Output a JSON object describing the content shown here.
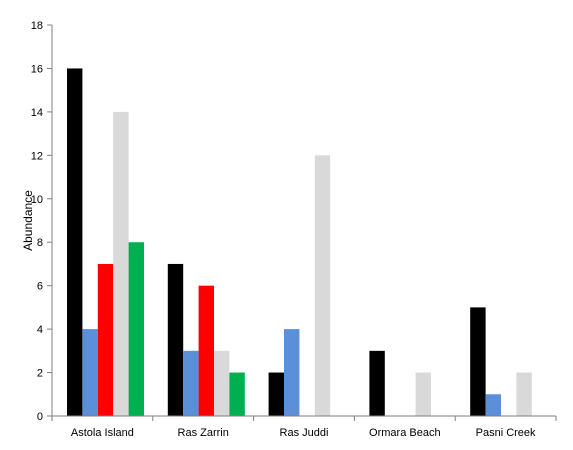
{
  "chart_data": {
    "type": "bar",
    "title": "",
    "xlabel": "",
    "ylabel": "Abundance",
    "ylim": [
      0,
      18
    ],
    "yticks": [
      0,
      2,
      4,
      6,
      8,
      10,
      12,
      14,
      16,
      18
    ],
    "grid": false,
    "legend": "none",
    "categories": [
      "Astola Island",
      "Ras Zarrin",
      "Ras Juddi",
      "Ormara Beach",
      "Pasni Creek"
    ],
    "series": [
      {
        "color": "#000000",
        "values": [
          16,
          7,
          2,
          3,
          5
        ]
      },
      {
        "color": "#5B8FD9",
        "values": [
          4,
          3,
          4,
          0,
          1
        ]
      },
      {
        "color": "#FF0000",
        "values": [
          7,
          6,
          0,
          0,
          0
        ]
      },
      {
        "color": "#D9D9D9",
        "values": [
          14,
          3,
          12,
          2,
          2
        ]
      },
      {
        "color": "#00B050",
        "values": [
          8,
          2,
          0,
          0,
          0
        ]
      }
    ]
  }
}
